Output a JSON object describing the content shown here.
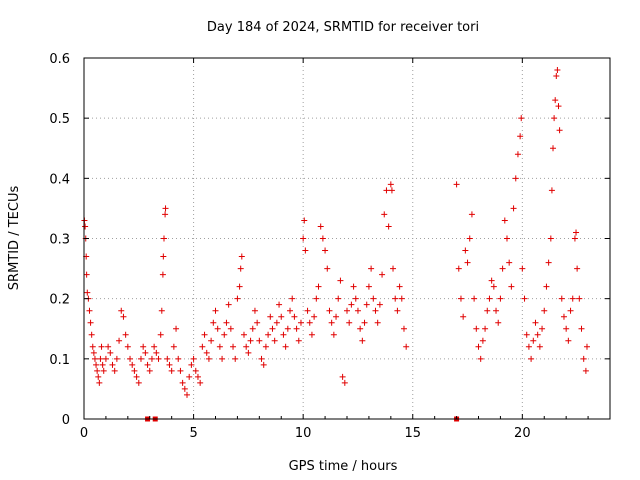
{
  "chart_data": {
    "type": "scatter",
    "title": "Day 184 of 2024, SRMTID for receiver tori",
    "xlabel": "GPS time / hours",
    "ylabel": "SRMTID / TECUs",
    "xlim": [
      0,
      24
    ],
    "ylim": [
      0,
      0.6
    ],
    "xticks": [
      0,
      5,
      10,
      15,
      20
    ],
    "yticks": [
      0,
      0.1,
      0.2,
      0.3,
      0.4,
      0.5,
      0.6
    ],
    "xtick_labels": [
      "0",
      "5",
      "10",
      "15",
      "20"
    ],
    "ytick_labels": [
      "0",
      "0.1",
      "0.2",
      "0.3",
      "0.4",
      "0.5",
      "0.6"
    ],
    "grid": true,
    "marker": "+",
    "color": "#e00000",
    "series": [
      {
        "name": "SRMTID",
        "points": [
          [
            0.02,
            0.33
          ],
          [
            0.05,
            0.32
          ],
          [
            0.08,
            0.3
          ],
          [
            0.1,
            0.27
          ],
          [
            0.12,
            0.24
          ],
          [
            0.15,
            0.21
          ],
          [
            0.2,
            0.2
          ],
          [
            0.25,
            0.18
          ],
          [
            0.3,
            0.16
          ],
          [
            0.35,
            0.14
          ],
          [
            0.4,
            0.12
          ],
          [
            0.45,
            0.11
          ],
          [
            0.5,
            0.1
          ],
          [
            0.55,
            0.09
          ],
          [
            0.6,
            0.08
          ],
          [
            0.65,
            0.07
          ],
          [
            0.7,
            0.06
          ],
          [
            0.75,
            0.1
          ],
          [
            0.8,
            0.12
          ],
          [
            0.85,
            0.09
          ],
          [
            0.9,
            0.08
          ],
          [
            1.0,
            0.1
          ],
          [
            1.1,
            0.12
          ],
          [
            1.2,
            0.11
          ],
          [
            1.3,
            0.09
          ],
          [
            1.4,
            0.08
          ],
          [
            1.5,
            0.1
          ],
          [
            1.6,
            0.13
          ],
          [
            1.7,
            0.18
          ],
          [
            1.8,
            0.17
          ],
          [
            1.9,
            0.14
          ],
          [
            2.0,
            0.12
          ],
          [
            2.1,
            0.1
          ],
          [
            2.2,
            0.09
          ],
          [
            2.3,
            0.08
          ],
          [
            2.4,
            0.07
          ],
          [
            2.5,
            0.06
          ],
          [
            2.6,
            0.1
          ],
          [
            2.7,
            0.12
          ],
          [
            2.8,
            0.11
          ],
          [
            2.9,
            0.09
          ],
          [
            3.0,
            0.08
          ],
          [
            3.1,
            0.1
          ],
          [
            3.2,
            0.12
          ],
          [
            3.3,
            0.11
          ],
          [
            3.4,
            0.1
          ],
          [
            3.5,
            0.14
          ],
          [
            3.55,
            0.18
          ],
          [
            3.6,
            0.24
          ],
          [
            3.62,
            0.27
          ],
          [
            3.65,
            0.3
          ],
          [
            3.7,
            0.34
          ],
          [
            3.72,
            0.35
          ],
          [
            3.8,
            0.1
          ],
          [
            3.9,
            0.09
          ],
          [
            4.0,
            0.08
          ],
          [
            4.1,
            0.12
          ],
          [
            4.2,
            0.15
          ],
          [
            4.3,
            0.1
          ],
          [
            4.4,
            0.08
          ],
          [
            4.5,
            0.06
          ],
          [
            4.6,
            0.05
          ],
          [
            4.7,
            0.04
          ],
          [
            4.8,
            0.07
          ],
          [
            4.9,
            0.09
          ],
          [
            5.0,
            0.1
          ],
          [
            5.1,
            0.08
          ],
          [
            5.2,
            0.07
          ],
          [
            5.3,
            0.06
          ],
          [
            5.4,
            0.12
          ],
          [
            5.5,
            0.14
          ],
          [
            5.6,
            0.11
          ],
          [
            5.7,
            0.1
          ],
          [
            5.8,
            0.13
          ],
          [
            5.9,
            0.16
          ],
          [
            6.0,
            0.18
          ],
          [
            6.1,
            0.15
          ],
          [
            6.2,
            0.12
          ],
          [
            6.3,
            0.1
          ],
          [
            6.4,
            0.14
          ],
          [
            6.5,
            0.16
          ],
          [
            6.6,
            0.19
          ],
          [
            6.7,
            0.15
          ],
          [
            6.8,
            0.12
          ],
          [
            6.9,
            0.1
          ],
          [
            7.0,
            0.2
          ],
          [
            7.1,
            0.22
          ],
          [
            7.15,
            0.25
          ],
          [
            7.2,
            0.27
          ],
          [
            7.3,
            0.14
          ],
          [
            7.4,
            0.12
          ],
          [
            7.5,
            0.11
          ],
          [
            7.6,
            0.13
          ],
          [
            7.7,
            0.15
          ],
          [
            7.8,
            0.18
          ],
          [
            7.9,
            0.16
          ],
          [
            8.0,
            0.13
          ],
          [
            8.1,
            0.1
          ],
          [
            8.2,
            0.09
          ],
          [
            8.3,
            0.12
          ],
          [
            8.4,
            0.14
          ],
          [
            8.5,
            0.17
          ],
          [
            8.6,
            0.15
          ],
          [
            8.7,
            0.13
          ],
          [
            8.8,
            0.16
          ],
          [
            8.9,
            0.19
          ],
          [
            9.0,
            0.17
          ],
          [
            9.1,
            0.14
          ],
          [
            9.2,
            0.12
          ],
          [
            9.3,
            0.15
          ],
          [
            9.4,
            0.18
          ],
          [
            9.5,
            0.2
          ],
          [
            9.6,
            0.17
          ],
          [
            9.7,
            0.15
          ],
          [
            9.8,
            0.13
          ],
          [
            9.9,
            0.16
          ],
          [
            10.0,
            0.3
          ],
          [
            10.05,
            0.33
          ],
          [
            10.1,
            0.28
          ],
          [
            10.2,
            0.18
          ],
          [
            10.3,
            0.16
          ],
          [
            10.4,
            0.14
          ],
          [
            10.5,
            0.17
          ],
          [
            10.6,
            0.2
          ],
          [
            10.7,
            0.22
          ],
          [
            10.8,
            0.32
          ],
          [
            10.9,
            0.3
          ],
          [
            11.0,
            0.28
          ],
          [
            11.1,
            0.25
          ],
          [
            11.2,
            0.18
          ],
          [
            11.3,
            0.16
          ],
          [
            11.4,
            0.14
          ],
          [
            11.5,
            0.17
          ],
          [
            11.6,
            0.2
          ],
          [
            11.7,
            0.23
          ],
          [
            11.8,
            0.07
          ],
          [
            11.9,
            0.06
          ],
          [
            12.0,
            0.18
          ],
          [
            12.1,
            0.16
          ],
          [
            12.2,
            0.19
          ],
          [
            12.3,
            0.22
          ],
          [
            12.4,
            0.2
          ],
          [
            12.5,
            0.18
          ],
          [
            12.6,
            0.15
          ],
          [
            12.7,
            0.13
          ],
          [
            12.8,
            0.16
          ],
          [
            12.9,
            0.19
          ],
          [
            13.0,
            0.22
          ],
          [
            13.1,
            0.25
          ],
          [
            13.2,
            0.2
          ],
          [
            13.3,
            0.18
          ],
          [
            13.4,
            0.16
          ],
          [
            13.5,
            0.19
          ],
          [
            13.6,
            0.24
          ],
          [
            13.7,
            0.34
          ],
          [
            13.8,
            0.38
          ],
          [
            13.9,
            0.32
          ],
          [
            14.0,
            0.39
          ],
          [
            14.05,
            0.38
          ],
          [
            14.1,
            0.25
          ],
          [
            14.2,
            0.2
          ],
          [
            14.3,
            0.18
          ],
          [
            14.4,
            0.22
          ],
          [
            14.5,
            0.2
          ],
          [
            14.6,
            0.15
          ],
          [
            14.7,
            0.12
          ],
          [
            17.0,
            0.39
          ],
          [
            17.1,
            0.25
          ],
          [
            17.2,
            0.2
          ],
          [
            17.3,
            0.17
          ],
          [
            17.4,
            0.28
          ],
          [
            17.5,
            0.26
          ],
          [
            17.6,
            0.3
          ],
          [
            17.7,
            0.34
          ],
          [
            17.8,
            0.2
          ],
          [
            17.9,
            0.15
          ],
          [
            18.0,
            0.12
          ],
          [
            18.1,
            0.1
          ],
          [
            18.2,
            0.13
          ],
          [
            18.3,
            0.15
          ],
          [
            18.4,
            0.18
          ],
          [
            18.5,
            0.2
          ],
          [
            18.6,
            0.23
          ],
          [
            18.7,
            0.22
          ],
          [
            18.8,
            0.18
          ],
          [
            18.9,
            0.16
          ],
          [
            19.0,
            0.2
          ],
          [
            19.1,
            0.25
          ],
          [
            19.2,
            0.33
          ],
          [
            19.3,
            0.3
          ],
          [
            19.4,
            0.26
          ],
          [
            19.5,
            0.22
          ],
          [
            19.6,
            0.35
          ],
          [
            19.7,
            0.4
          ],
          [
            19.8,
            0.44
          ],
          [
            19.9,
            0.47
          ],
          [
            19.95,
            0.5
          ],
          [
            20.0,
            0.25
          ],
          [
            20.1,
            0.2
          ],
          [
            20.2,
            0.14
          ],
          [
            20.3,
            0.12
          ],
          [
            20.4,
            0.1
          ],
          [
            20.5,
            0.13
          ],
          [
            20.6,
            0.16
          ],
          [
            20.7,
            0.14
          ],
          [
            20.8,
            0.12
          ],
          [
            20.9,
            0.15
          ],
          [
            21.0,
            0.18
          ],
          [
            21.1,
            0.22
          ],
          [
            21.2,
            0.26
          ],
          [
            21.3,
            0.3
          ],
          [
            21.35,
            0.38
          ],
          [
            21.4,
            0.45
          ],
          [
            21.45,
            0.5
          ],
          [
            21.5,
            0.53
          ],
          [
            21.55,
            0.57
          ],
          [
            21.6,
            0.58
          ],
          [
            21.65,
            0.52
          ],
          [
            21.7,
            0.48
          ],
          [
            21.8,
            0.2
          ],
          [
            21.9,
            0.17
          ],
          [
            22.0,
            0.15
          ],
          [
            22.1,
            0.13
          ],
          [
            22.2,
            0.18
          ],
          [
            22.3,
            0.2
          ],
          [
            22.4,
            0.3
          ],
          [
            22.45,
            0.31
          ],
          [
            22.5,
            0.25
          ],
          [
            22.6,
            0.2
          ],
          [
            22.7,
            0.15
          ],
          [
            22.8,
            0.1
          ],
          [
            22.9,
            0.08
          ],
          [
            22.95,
            0.12
          ]
        ]
      }
    ],
    "zero_markers_x": [
      2.9,
      3.25,
      17.0
    ]
  }
}
